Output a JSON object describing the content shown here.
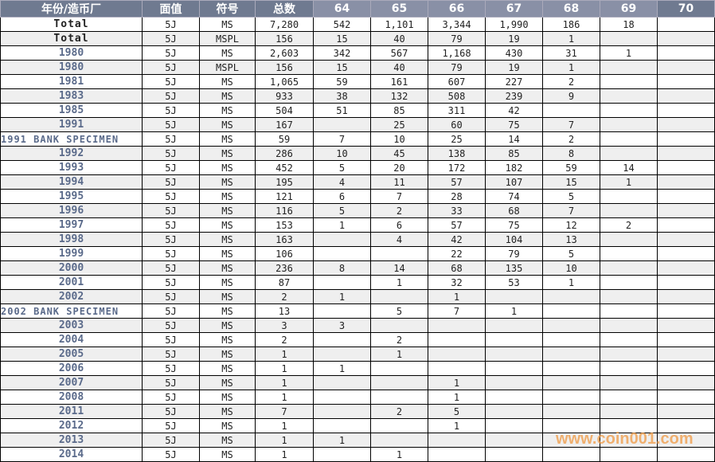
{
  "header": [
    "年份/造币厂",
    "面值",
    "符号",
    "总数",
    "64",
    "65",
    "66",
    "67",
    "68",
    "69",
    "70"
  ],
  "rows": [
    [
      "Total",
      "5J",
      "MS",
      "7,280",
      "542",
      "1,101",
      "3,344",
      "1,990",
      "186",
      "18",
      ""
    ],
    [
      "Total",
      "5J",
      "MSPL",
      "156",
      "15",
      "40",
      "79",
      "19",
      "1",
      "",
      ""
    ],
    [
      "1980",
      "5J",
      "MS",
      "2,603",
      "342",
      "567",
      "1,168",
      "430",
      "31",
      "1",
      ""
    ],
    [
      "1980",
      "5J",
      "MSPL",
      "156",
      "15",
      "40",
      "79",
      "19",
      "1",
      "",
      ""
    ],
    [
      "1981",
      "5J",
      "MS",
      "1,065",
      "59",
      "161",
      "607",
      "227",
      "2",
      "",
      ""
    ],
    [
      "1983",
      "5J",
      "MS",
      "933",
      "38",
      "132",
      "508",
      "239",
      "9",
      "",
      ""
    ],
    [
      "1985",
      "5J",
      "MS",
      "504",
      "51",
      "85",
      "311",
      "42",
      "",
      "",
      ""
    ],
    [
      "1991",
      "5J",
      "MS",
      "167",
      "",
      "25",
      "60",
      "75",
      "7",
      "",
      ""
    ],
    [
      "1991 BANK SPECIMEN",
      "5J",
      "MS",
      "59",
      "7",
      "10",
      "25",
      "14",
      "2",
      "",
      ""
    ],
    [
      "1992",
      "5J",
      "MS",
      "286",
      "10",
      "45",
      "138",
      "85",
      "8",
      "",
      ""
    ],
    [
      "1993",
      "5J",
      "MS",
      "452",
      "5",
      "20",
      "172",
      "182",
      "59",
      "14",
      ""
    ],
    [
      "1994",
      "5J",
      "MS",
      "195",
      "4",
      "11",
      "57",
      "107",
      "15",
      "1",
      ""
    ],
    [
      "1995",
      "5J",
      "MS",
      "121",
      "6",
      "7",
      "28",
      "74",
      "5",
      "",
      ""
    ],
    [
      "1996",
      "5J",
      "MS",
      "116",
      "5",
      "2",
      "33",
      "68",
      "7",
      "",
      ""
    ],
    [
      "1997",
      "5J",
      "MS",
      "153",
      "1",
      "6",
      "57",
      "75",
      "12",
      "2",
      ""
    ],
    [
      "1998",
      "5J",
      "MS",
      "163",
      "",
      "4",
      "42",
      "104",
      "13",
      "",
      ""
    ],
    [
      "1999",
      "5J",
      "MS",
      "106",
      "",
      "",
      "22",
      "79",
      "5",
      "",
      ""
    ],
    [
      "2000",
      "5J",
      "MS",
      "236",
      "8",
      "14",
      "68",
      "135",
      "10",
      "",
      ""
    ],
    [
      "2001",
      "5J",
      "MS",
      "87",
      "",
      "1",
      "32",
      "53",
      "1",
      "",
      ""
    ],
    [
      "2002",
      "5J",
      "MS",
      "2",
      "1",
      "",
      "1",
      "",
      "",
      "",
      ""
    ],
    [
      "2002 BANK SPECIMEN",
      "5J",
      "MS",
      "13",
      "",
      "5",
      "7",
      "1",
      "",
      "",
      ""
    ],
    [
      "2003",
      "5J",
      "MS",
      "3",
      "3",
      "",
      "",
      "",
      "",
      "",
      ""
    ],
    [
      "2004",
      "5J",
      "MS",
      "2",
      "",
      "2",
      "",
      "",
      "",
      "",
      ""
    ],
    [
      "2005",
      "5J",
      "MS",
      "1",
      "",
      "1",
      "",
      "",
      "",
      "",
      ""
    ],
    [
      "2006",
      "5J",
      "MS",
      "1",
      "1",
      "",
      "",
      "",
      "",
      "",
      ""
    ],
    [
      "2007",
      "5J",
      "MS",
      "1",
      "",
      "",
      "1",
      "",
      "",
      "",
      ""
    ],
    [
      "2008",
      "5J",
      "MS",
      "1",
      "",
      "",
      "1",
      "",
      "",
      "",
      ""
    ],
    [
      "2011",
      "5J",
      "MS",
      "7",
      "",
      "2",
      "5",
      "",
      "",
      "",
      ""
    ],
    [
      "2012",
      "5J",
      "MS",
      "1",
      "",
      "",
      "1",
      "",
      "",
      "",
      ""
    ],
    [
      "2013",
      "5J",
      "MS",
      "1",
      "1",
      "",
      "",
      "",
      "",
      "",
      ""
    ],
    [
      "2014",
      "5J",
      "MS",
      "1",
      "",
      "1",
      "",
      "",
      "",
      "",
      ""
    ]
  ],
  "watermark": "www.coin001.com"
}
